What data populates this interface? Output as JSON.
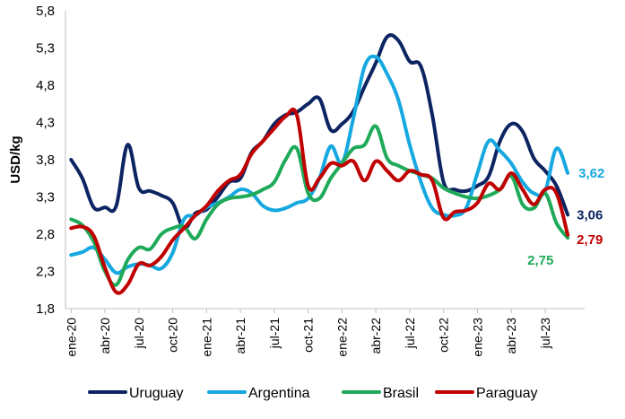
{
  "chart_data": {
    "type": "line",
    "title": "",
    "xlabel": "",
    "ylabel": "USD/kg",
    "ylim": [
      1.8,
      5.8
    ],
    "yticks": [
      "1,8",
      "2,3",
      "2,8",
      "3,3",
      "3,8",
      "4,3",
      "4,8",
      "5,3",
      "5,8"
    ],
    "ytick_values": [
      1.8,
      2.3,
      2.8,
      3.3,
      3.8,
      4.3,
      4.8,
      5.3,
      5.8
    ],
    "x_tick_labels": [
      "ene-20",
      "abr-20",
      "jul-20",
      "oct-20",
      "ene-21",
      "abr-21",
      "jul-21",
      "oct-21",
      "ene-22",
      "abr-22",
      "jul-22",
      "oct-22",
      "ene-23",
      "abr-23",
      "jul-23"
    ],
    "x_tick_index": [
      0,
      3,
      6,
      9,
      12,
      15,
      18,
      21,
      24,
      27,
      30,
      33,
      36,
      39,
      42
    ],
    "x_range": [
      -0.5,
      45.5
    ],
    "grid": false,
    "legend_position": "bottom",
    "series": [
      {
        "name": "Uruguay",
        "color": "#0c2461",
        "end_label": "3,06",
        "values": [
          3.8,
          3.55,
          3.16,
          3.16,
          3.18,
          4.0,
          3.42,
          3.38,
          3.32,
          3.22,
          2.88,
          3.08,
          3.13,
          3.3,
          3.5,
          3.55,
          3.9,
          4.05,
          4.28,
          4.4,
          4.44,
          4.55,
          4.62,
          4.2,
          4.28,
          4.45,
          4.78,
          5.1,
          5.45,
          5.4,
          5.12,
          5.05,
          4.4,
          3.5,
          3.4,
          3.38,
          3.45,
          3.58,
          4.05,
          4.28,
          4.18,
          3.82,
          3.65,
          3.45,
          3.06
        ]
      },
      {
        "name": "Argentina",
        "color": "#16a8e0",
        "end_label": "3,62",
        "values": [
          2.52,
          2.56,
          2.62,
          2.46,
          2.28,
          2.36,
          2.4,
          2.38,
          2.34,
          2.55,
          3.0,
          3.05,
          3.16,
          3.22,
          3.3,
          3.4,
          3.35,
          3.18,
          3.12,
          3.15,
          3.22,
          3.28,
          3.55,
          3.98,
          3.76,
          4.35,
          5.05,
          5.18,
          4.95,
          4.6,
          4.0,
          3.5,
          3.15,
          3.06,
          3.05,
          3.15,
          3.62,
          4.05,
          3.92,
          3.75,
          3.5,
          3.35,
          3.38,
          3.95,
          3.62
        ]
      },
      {
        "name": "Brasil",
        "color": "#1faa59",
        "end_label": "2,75",
        "values": [
          3.0,
          2.92,
          2.7,
          2.3,
          2.12,
          2.45,
          2.62,
          2.6,
          2.8,
          2.88,
          2.9,
          2.74,
          3.0,
          3.2,
          3.28,
          3.3,
          3.33,
          3.4,
          3.5,
          3.8,
          3.95,
          3.35,
          3.28,
          3.55,
          3.75,
          3.95,
          4.0,
          4.25,
          3.82,
          3.72,
          3.65,
          3.6,
          3.55,
          3.42,
          3.35,
          3.3,
          3.28,
          3.32,
          3.4,
          3.58,
          3.2,
          3.15,
          3.35,
          2.95,
          2.75
        ]
      },
      {
        "name": "Paraguay",
        "color": "#c00000",
        "end_label": "2,79",
        "values": [
          2.88,
          2.9,
          2.78,
          2.35,
          2.02,
          2.12,
          2.4,
          2.38,
          2.5,
          2.72,
          2.88,
          3.05,
          3.18,
          3.38,
          3.52,
          3.6,
          3.88,
          4.05,
          4.22,
          4.38,
          4.4,
          3.45,
          3.55,
          3.75,
          3.72,
          3.78,
          3.52,
          3.78,
          3.65,
          3.52,
          3.65,
          3.6,
          3.52,
          3.02,
          3.1,
          3.12,
          3.22,
          3.48,
          3.4,
          3.62,
          3.4,
          3.2,
          3.4,
          3.35,
          2.79
        ]
      }
    ]
  }
}
